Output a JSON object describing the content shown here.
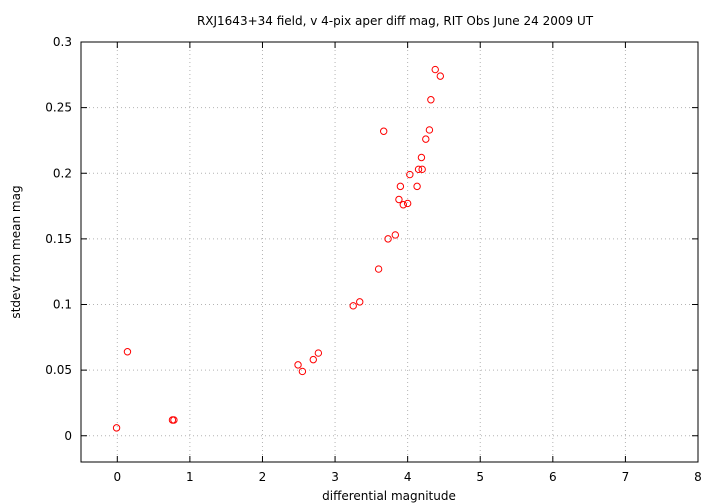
{
  "chart_data": {
    "type": "scatter",
    "title": "RXJ1643+34 field, v 4-pix aper diff mag, RIT Obs June 24 2009 UT",
    "xlabel": "differential magnitude",
    "ylabel": "stdev from mean mag",
    "xlim": [
      -0.5,
      8
    ],
    "ylim": [
      -0.02,
      0.3
    ],
    "xticks": [
      0,
      1,
      2,
      3,
      4,
      5,
      6,
      7,
      8
    ],
    "xtick_labels": [
      "0",
      "1",
      "2",
      "3",
      "4",
      "5",
      "6",
      "7",
      "8"
    ],
    "yticks": [
      0,
      0.05,
      0.1,
      0.15,
      0.2,
      0.25,
      0.3
    ],
    "ytick_labels": [
      "0",
      "0.05",
      "0.1",
      "0.15",
      "0.2",
      "0.25",
      "0.3"
    ],
    "grid": true,
    "marker": "open-circle",
    "marker_color": "#ff0000",
    "points": [
      [
        -0.01,
        0.006
      ],
      [
        0.14,
        0.064
      ],
      [
        0.76,
        0.012
      ],
      [
        0.78,
        0.012
      ],
      [
        2.49,
        0.054
      ],
      [
        2.55,
        0.049
      ],
      [
        2.7,
        0.058
      ],
      [
        2.77,
        0.063
      ],
      [
        3.25,
        0.099
      ],
      [
        3.34,
        0.102
      ],
      [
        3.6,
        0.127
      ],
      [
        3.67,
        0.232
      ],
      [
        3.73,
        0.15
      ],
      [
        3.83,
        0.153
      ],
      [
        3.88,
        0.18
      ],
      [
        3.9,
        0.19
      ],
      [
        3.94,
        0.176
      ],
      [
        4.0,
        0.177
      ],
      [
        4.03,
        0.199
      ],
      [
        4.13,
        0.19
      ],
      [
        4.15,
        0.203
      ],
      [
        4.19,
        0.212
      ],
      [
        4.2,
        0.203
      ],
      [
        4.25,
        0.226
      ],
      [
        4.3,
        0.233
      ],
      [
        4.32,
        0.256
      ],
      [
        4.38,
        0.279
      ],
      [
        4.45,
        0.274
      ]
    ]
  }
}
